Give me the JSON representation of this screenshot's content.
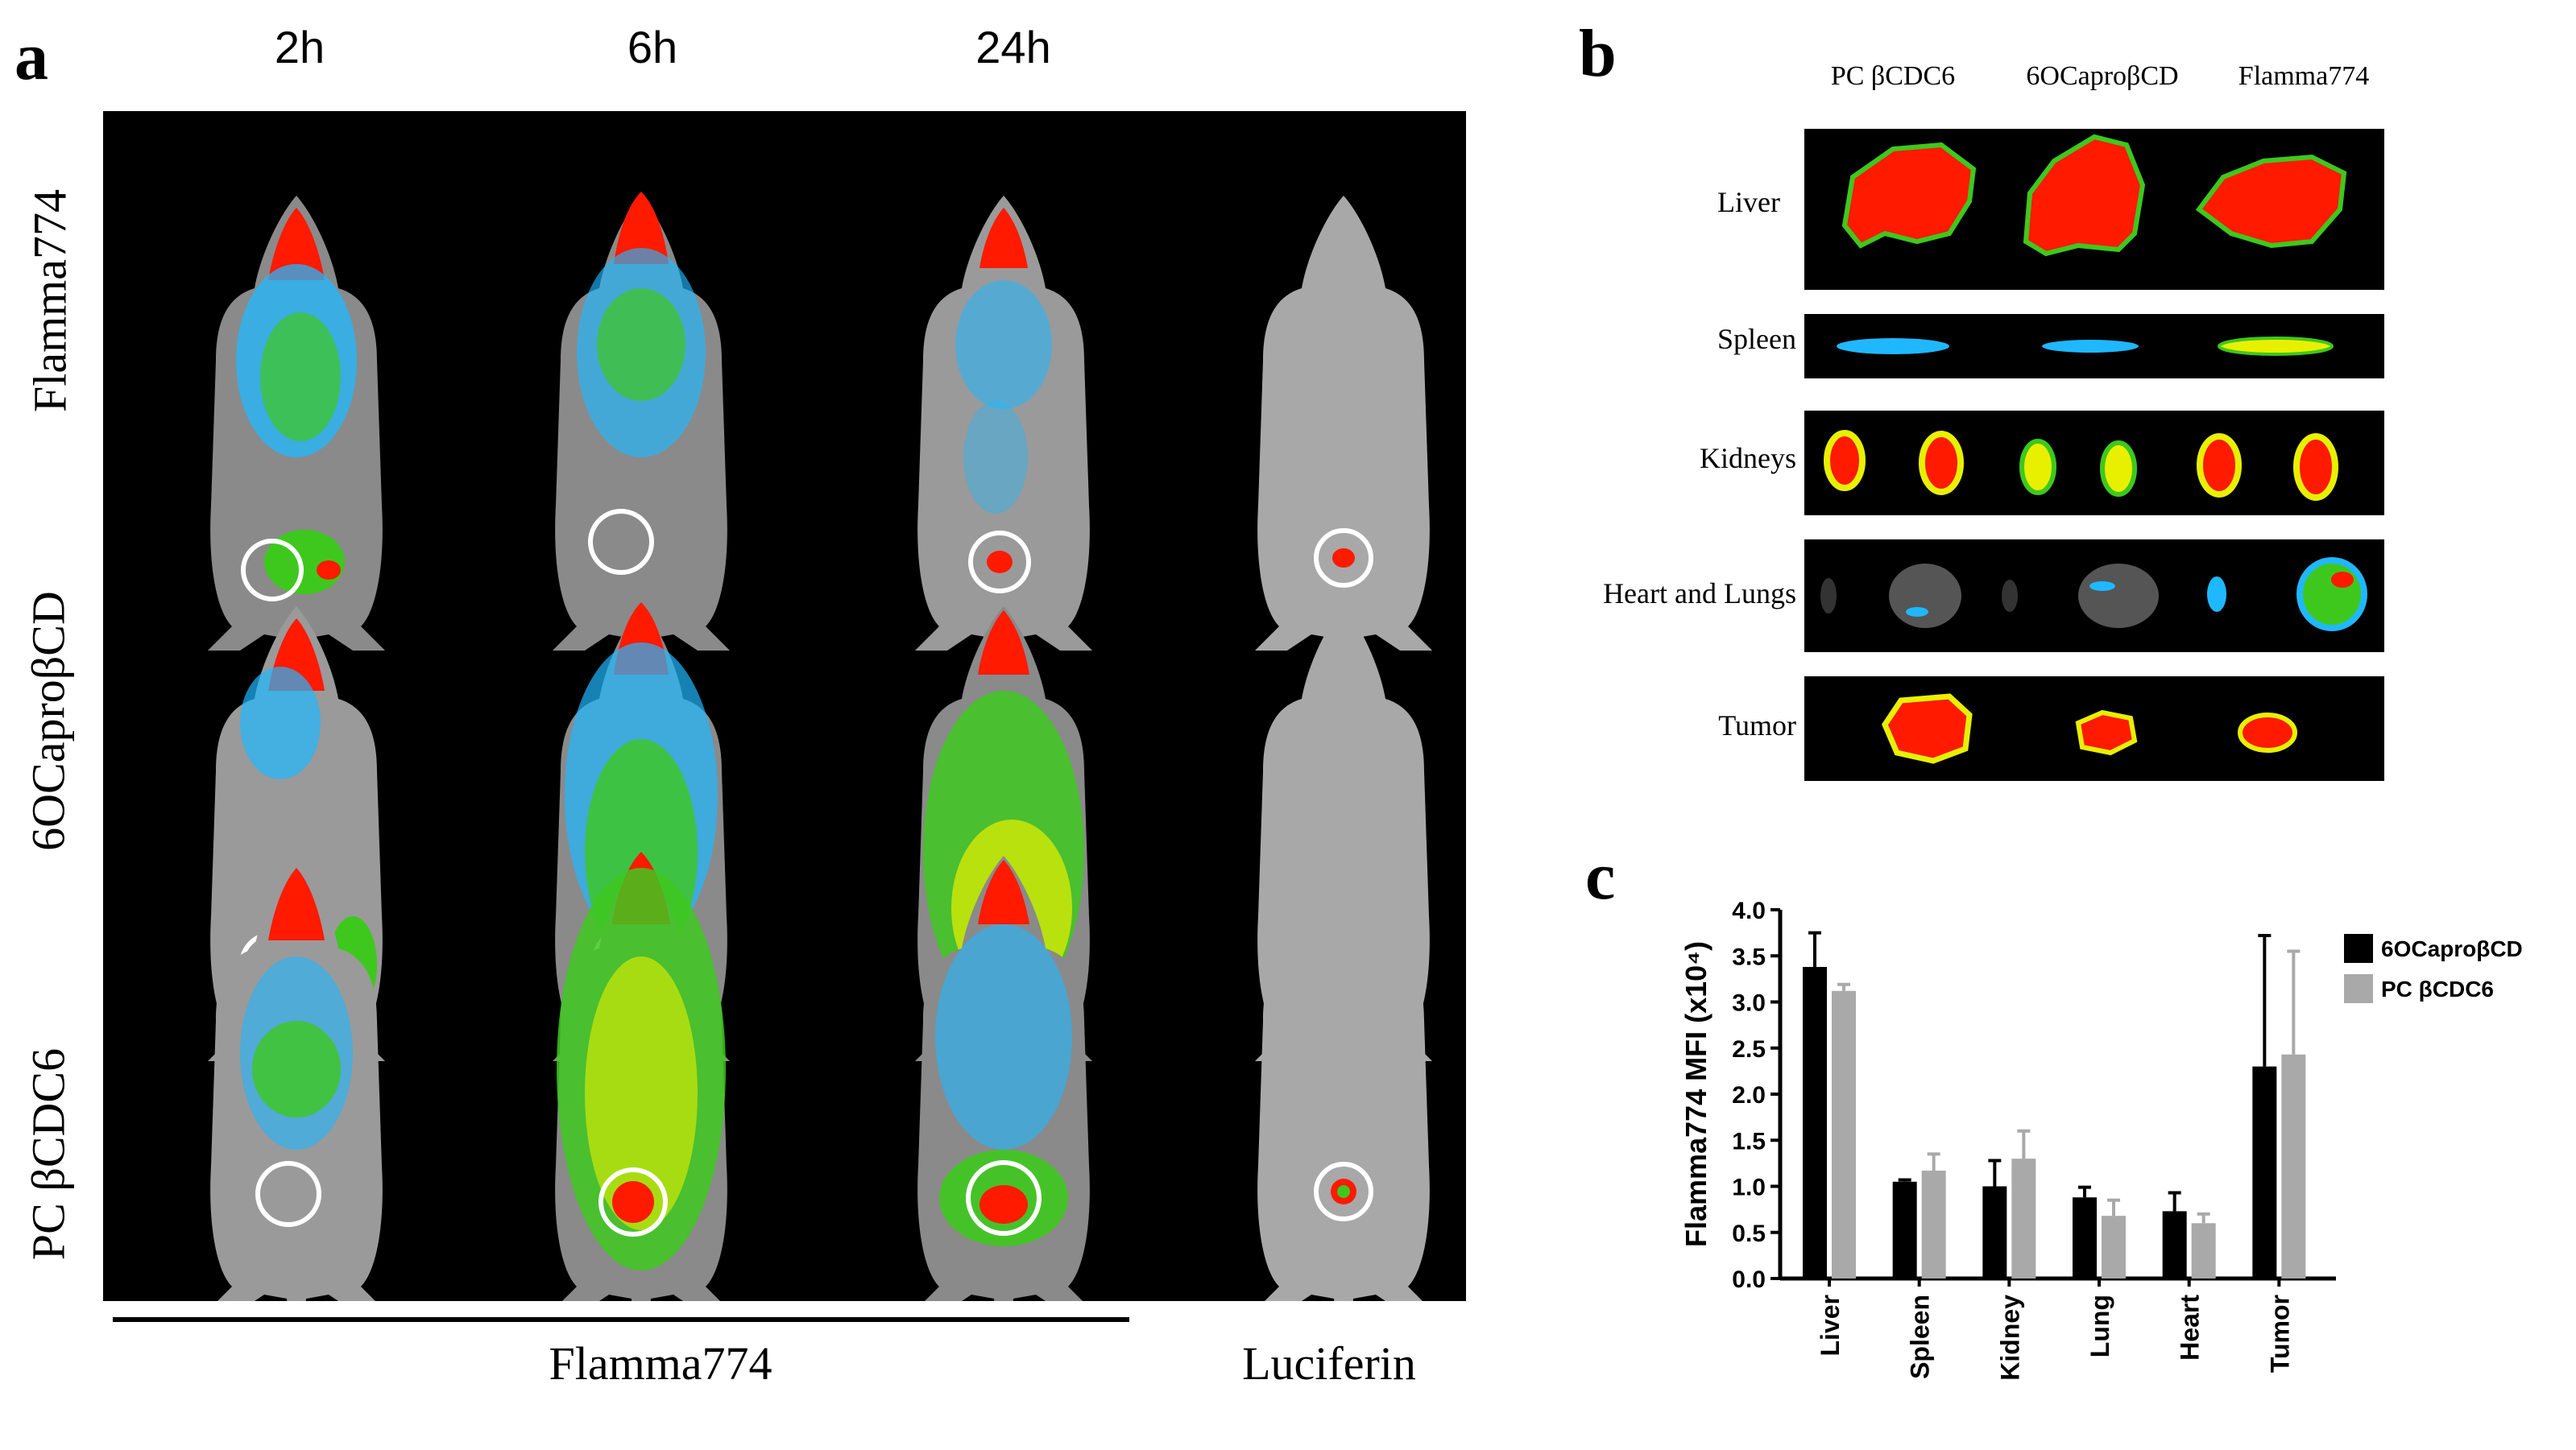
{
  "panel_a": {
    "letter": "a",
    "time_labels": [
      "2h",
      "6h",
      "24h"
    ],
    "row_labels": [
      "Flamma774",
      "6OCaproβCD",
      "PC βCDC6"
    ],
    "bottom_labels": {
      "flamma": "Flamma774",
      "luciferin": "Luciferin"
    }
  },
  "panel_b": {
    "letter": "b",
    "columns": [
      "PC βCDC6",
      "6OCaproβCD",
      "Flamma774"
    ],
    "organs": [
      "Liver",
      "Spleen",
      "Kidneys",
      "Heart and Lungs",
      "Tumor"
    ]
  },
  "panel_c": {
    "letter": "c"
  },
  "colors": {
    "series1": "#000000",
    "series2": "#a9a9a9",
    "heat_red": "#ff1a00",
    "heat_yellow": "#e8f000",
    "heat_green": "#3ec81e",
    "heat_cyan": "#1fb8ff"
  },
  "chart_data": {
    "type": "bar",
    "title": "",
    "xlabel": "",
    "ylabel": "Flamma774 MFI (x10⁴)",
    "ylim": [
      0,
      4.0
    ],
    "yticks": [
      "0.0",
      "0.5",
      "1.0",
      "1.5",
      "2.0",
      "2.5",
      "3.0",
      "3.5",
      "4.0"
    ],
    "categories": [
      "Liver",
      "Spleen",
      "Kidney",
      "Lung",
      "Heart",
      "Tumor"
    ],
    "legend_position": "right",
    "series": [
      {
        "name": "6OCaproβCD",
        "color": "#000000",
        "values": [
          3.38,
          1.05,
          1.0,
          0.88,
          0.73,
          2.3
        ],
        "errors": [
          0.37,
          0.02,
          0.28,
          0.11,
          0.2,
          1.42
        ]
      },
      {
        "name": "PC βCDC6",
        "color": "#a9a9a9",
        "values": [
          3.12,
          1.17,
          1.3,
          0.68,
          0.6,
          2.43
        ],
        "errors": [
          0.07,
          0.18,
          0.3,
          0.17,
          0.1,
          1.12
        ]
      }
    ]
  }
}
